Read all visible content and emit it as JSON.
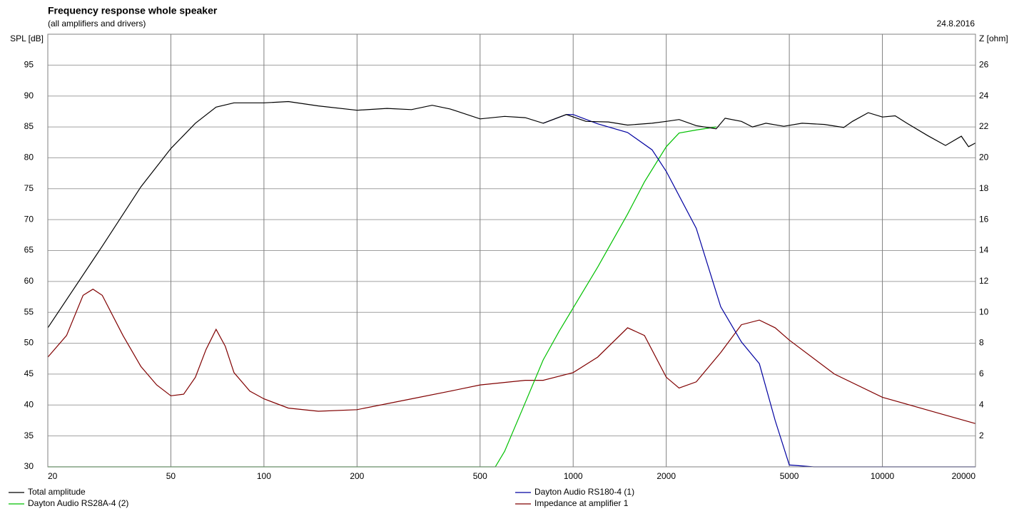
{
  "chart_data": {
    "type": "line",
    "title": "Frequency response whole speaker",
    "subtitle": "(all amplifiers and drivers)",
    "date": "24.8.2016",
    "y_label": "SPL [dB]",
    "y2_label": "Z [ohm]",
    "log_x": true,
    "grid": true,
    "xlim": [
      20,
      20000
    ],
    "xticks": [
      20,
      50,
      100,
      200,
      500,
      1000,
      2000,
      5000,
      10000,
      20000
    ],
    "ylim": [
      30,
      100
    ],
    "yticks": [
      30,
      35,
      40,
      45,
      50,
      55,
      60,
      65,
      70,
      75,
      80,
      85,
      90,
      95
    ],
    "y2lim": [
      0,
      28
    ],
    "y2ticks": [
      2,
      4,
      6,
      8,
      10,
      12,
      14,
      16,
      18,
      20,
      22,
      24,
      26
    ],
    "series": [
      {
        "name": "Total amplitude",
        "color": "#000000",
        "x": [
          20,
          30,
          40,
          50,
          60,
          70,
          80,
          100,
          120,
          150,
          200,
          250,
          300,
          350,
          400,
          500,
          600,
          700,
          800,
          950,
          1100,
          1300,
          1500,
          1800,
          2000,
          2200,
          2500,
          2900,
          3100,
          3500,
          3800,
          4200,
          4800,
          5500,
          6500,
          7500,
          8000,
          9000,
          10000,
          11000,
          12000,
          14000,
          16000,
          18000,
          19000,
          20000
        ],
        "values": [
          52.5,
          65.7,
          75.3,
          81.5,
          85.6,
          88.2,
          88.9,
          88.9,
          89.1,
          88.4,
          87.7,
          88,
          87.8,
          88.5,
          87.9,
          86.3,
          86.7,
          86.5,
          85.6,
          87,
          85.9,
          85.8,
          85.3,
          85.6,
          85.9,
          86.2,
          85.2,
          84.7,
          86.4,
          85.9,
          85,
          85.6,
          85.1,
          85.6,
          85.4,
          84.9,
          85.9,
          87.3,
          86.6,
          86.8,
          85.6,
          83.6,
          82,
          83.5,
          81.8,
          82.4
        ]
      },
      {
        "name": "Dayton Audio RS180-4 (1)",
        "color": "#0000a0",
        "x": [
          800,
          950,
          1000,
          1200,
          1500,
          1800,
          2000,
          2500,
          3000,
          3500,
          4000,
          4500,
          5000,
          6000,
          10000,
          20000
        ],
        "values": [
          85.6,
          87,
          87,
          85.5,
          84.1,
          81.3,
          77.8,
          68.6,
          55.9,
          50.2,
          46.7,
          37.5,
          30.3,
          30,
          30,
          30
        ]
      },
      {
        "name": "Dayton Audio RS28A-4 (2)",
        "color": "#00c000",
        "x": [
          20,
          100,
          560,
          600,
          700,
          800,
          900,
          1000,
          1200,
          1500,
          1700,
          2000,
          2200,
          2500,
          2900
        ],
        "values": [
          30,
          30,
          30,
          32.5,
          40.4,
          47.3,
          51.9,
          55.7,
          62.3,
          70.9,
          76.1,
          81.8,
          84,
          84.5,
          85
        ]
      },
      {
        "name": "Impedance at amplifier 1",
        "color": "#800000",
        "axis": "y2",
        "x": [
          20,
          23,
          26,
          28,
          30,
          35,
          40,
          45,
          50,
          55,
          60,
          65,
          70,
          75,
          80,
          90,
          100,
          120,
          150,
          200,
          300,
          400,
          500,
          700,
          800,
          1000,
          1200,
          1500,
          1700,
          2000,
          2200,
          2500,
          3000,
          3500,
          4000,
          4500,
          5000,
          7000,
          10000,
          15000,
          20000
        ],
        "values": [
          7.1,
          8.5,
          11.1,
          11.5,
          11.1,
          8.5,
          6.5,
          5.3,
          4.6,
          4.7,
          5.8,
          7.6,
          8.9,
          7.8,
          6.1,
          4.9,
          4.4,
          3.8,
          3.6,
          3.7,
          4.4,
          4.9,
          5.3,
          5.6,
          5.6,
          6.1,
          7.1,
          9,
          8.5,
          5.8,
          5.1,
          5.5,
          7.4,
          9.2,
          9.5,
          9,
          8.2,
          6,
          4.5,
          3.5,
          2.8
        ]
      }
    ]
  }
}
